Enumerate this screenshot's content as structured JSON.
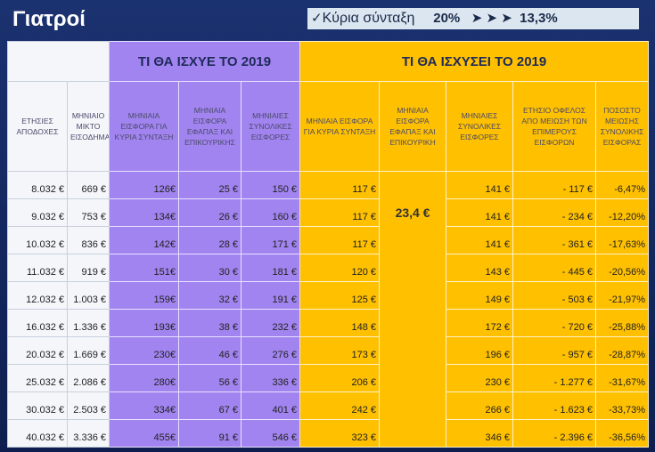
{
  "header": {
    "title": "Γιατροί",
    "badge": {
      "label": "Κύρια σύνταξη",
      "from": "20%",
      "to": "13,3%"
    }
  },
  "table": {
    "groups": [
      "ΤΙ ΘΑ ΙΣΧΥΕ ΤΟ 2019",
      "ΤΙ ΘΑ ΙΣΧΥΣΕΙ ΤΟ 2019"
    ],
    "columns": [
      "ΕΤΗΣΙΕΣ ΑΠΟΔΟΧΕΣ",
      "ΜΗΝΙΑΙΟ ΜΙΚΤΟ ΕΙΣΟΔΗΜΑ",
      "ΜΗΝΙΑΙΑ ΕΙΣΦΟΡΑ ΓΙΑ ΚΥΡΙΑ ΣΥΝΤΑΞΗ",
      "ΜΗΝΙΑΙΑ ΕΙΣΦΟΡΑ ΕΦΑΠΑΞ ΚΑΙ ΕΠΙΚΟΥΡΙΚΗΣ",
      "ΜΗΝΙΑΙΕΣ ΣΥΝΟΛΙΚΕΣ ΕΙΣΦΟΡΕΣ",
      "ΜΗΝΙΑΙΑ ΕΙΣΦΟΡΑ ΓΙΑ ΚΥΡΙΑ ΣΥΝΤΑΞΗ",
      "ΜΗΝΙΑΙΑ ΕΙΣΦΟΡΑ ΕΦΑΠΑΞ ΚΑΙ ΕΠΙΚΟΥΡΙΚΗ",
      "ΜΗΝΙΑΙΕΣ ΣΥΝΟΛΙΚΕΣ ΕΙΣΦΟΡΕΣ",
      "ΕΤΗΣΙΟ ΟΦΕΛΟΣ ΑΠΟ ΜΕΙΩΣΗ ΤΩΝ ΕΠΙΜΕΡΟΥΣ ΕΙΣΦΟΡΩΝ",
      "ΠΟΣΟΣΤΟ ΜΕΙΩΣΗΣ ΣΥΝΟΛΙΚΗΣ ΕΙΣΦΟΡΑΣ"
    ],
    "merged_cell": "23,4 €",
    "rows": [
      [
        "8.032 €",
        "669 €",
        "126€",
        "25 €",
        "150 €",
        "117 €",
        "141 €",
        "- 117 €",
        "-6,47%"
      ],
      [
        "9.032 €",
        "753 €",
        "134€",
        "26 €",
        "160 €",
        "117 €",
        "141 €",
        "- 234 €",
        "-12,20%"
      ],
      [
        "10.032 €",
        "836 €",
        "142€",
        "28 €",
        "171 €",
        "117 €",
        "141 €",
        "- 361 €",
        "-17,63%"
      ],
      [
        "11.032 €",
        "919 €",
        "151€",
        "30 €",
        "181 €",
        "120 €",
        "143 €",
        "- 445 €",
        "-20,56%"
      ],
      [
        "12.032 €",
        "1.003 €",
        "159€",
        "32 €",
        "191 €",
        "125 €",
        "149 €",
        "- 503 €",
        "-21,97%"
      ],
      [
        "16.032 €",
        "1.336 €",
        "193€",
        "38 €",
        "232 €",
        "148 €",
        "172 €",
        "- 720 €",
        "-25,88%"
      ],
      [
        "20.032 €",
        "1.669 €",
        "230€",
        "46 €",
        "276 €",
        "173 €",
        "196 €",
        "- 957 €",
        "-28,87%"
      ],
      [
        "25.032 €",
        "2.086 €",
        "280€",
        "56 €",
        "336 €",
        "206 €",
        "230 €",
        "- 1.277 €",
        "-31,67%"
      ],
      [
        "30.032 €",
        "2.503 €",
        "334€",
        "67 €",
        "401 €",
        "242 €",
        "266 €",
        "- 1.623 €",
        "-33,73%"
      ],
      [
        "40.032 €",
        "3.336 €",
        "455€",
        "91 €",
        "546 €",
        "323 €",
        "346 €",
        "- 2.396 €",
        "-36,56%"
      ]
    ]
  }
}
